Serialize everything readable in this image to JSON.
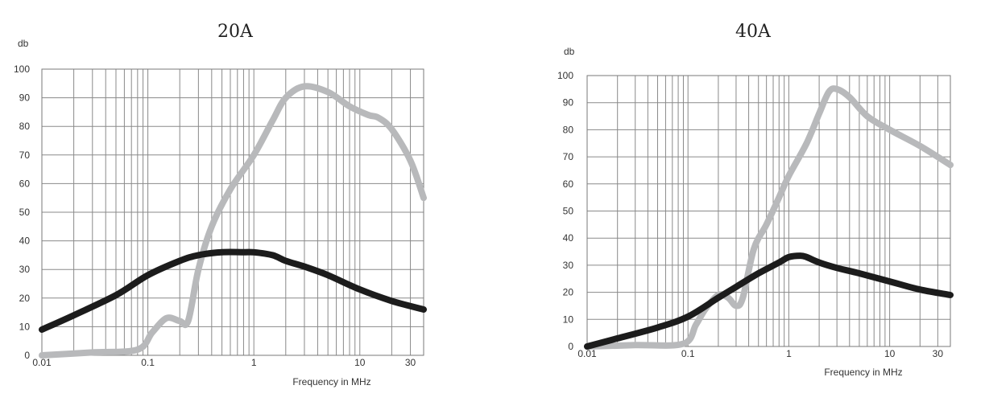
{
  "colors": {
    "series_grey": "#b8b9bb",
    "series_black": "#1c1c1c",
    "grid": "#8a8a8a"
  },
  "chart_data": [
    {
      "type": "line",
      "title": "20A",
      "ylabel": "db",
      "xlabel": "Frequency in MHz",
      "x_scale": "log",
      "xlim": [
        0.01,
        40
      ],
      "ylim": [
        0,
        100
      ],
      "yticks": [
        0,
        10,
        20,
        30,
        40,
        50,
        60,
        70,
        80,
        90,
        100
      ],
      "ytick_labels": [
        "0",
        "10",
        "20",
        "30",
        "40",
        "50",
        "60",
        "70",
        "80",
        "90",
        "100"
      ],
      "xtick_labels": [
        {
          "value": 0.01,
          "label": "0.01"
        },
        {
          "value": 0.1,
          "label": "0.1"
        },
        {
          "value": 1,
          "label": "1"
        },
        {
          "value": 10,
          "label": "10"
        },
        {
          "value": 30,
          "label": "30"
        }
      ],
      "grid": true,
      "series": [
        {
          "color_key": "series_grey",
          "points": [
            [
              0.01,
              0
            ],
            [
              0.03,
              1
            ],
            [
              0.08,
              2
            ],
            [
              0.11,
              8
            ],
            [
              0.15,
              13
            ],
            [
              0.2,
              12
            ],
            [
              0.24,
              12
            ],
            [
              0.3,
              30
            ],
            [
              0.4,
              45
            ],
            [
              0.6,
              58
            ],
            [
              1,
              70
            ],
            [
              1.5,
              82
            ],
            [
              2,
              90
            ],
            [
              3,
              94
            ],
            [
              5,
              92
            ],
            [
              8,
              87
            ],
            [
              12,
              84
            ],
            [
              15,
              83
            ],
            [
              20,
              79
            ],
            [
              30,
              68
            ],
            [
              40,
              55
            ]
          ]
        },
        {
          "color_key": "series_black",
          "points": [
            [
              0.01,
              9
            ],
            [
              0.02,
              14
            ],
            [
              0.05,
              21
            ],
            [
              0.1,
              28
            ],
            [
              0.2,
              33
            ],
            [
              0.3,
              35
            ],
            [
              0.5,
              36
            ],
            [
              0.8,
              36
            ],
            [
              1,
              36
            ],
            [
              1.5,
              35
            ],
            [
              2,
              33
            ],
            [
              3,
              31
            ],
            [
              5,
              28
            ],
            [
              10,
              23
            ],
            [
              20,
              19
            ],
            [
              40,
              16
            ]
          ]
        }
      ]
    },
    {
      "type": "line",
      "title": "40A",
      "ylabel": "db",
      "xlabel": "Frequency in MHz",
      "x_scale": "log",
      "xlim": [
        0.01,
        40
      ],
      "ylim": [
        0,
        100
      ],
      "yticks": [
        0,
        10,
        20,
        30,
        40,
        50,
        60,
        70,
        80,
        90,
        100
      ],
      "ytick_labels": [
        "0",
        "10",
        "20",
        "30",
        "40",
        "50",
        "60",
        "70",
        "80",
        "90",
        "100"
      ],
      "xtick_labels": [
        {
          "value": 0.01,
          "label": "0.01"
        },
        {
          "value": 0.1,
          "label": "0.1"
        },
        {
          "value": 1,
          "label": "1"
        },
        {
          "value": 10,
          "label": "10"
        },
        {
          "value": 30,
          "label": "30"
        }
      ],
      "grid": true,
      "series": [
        {
          "color_key": "series_grey",
          "points": [
            [
              0.01,
              0
            ],
            [
              0.03,
              0.5
            ],
            [
              0.09,
              1
            ],
            [
              0.12,
              8
            ],
            [
              0.15,
              14
            ],
            [
              0.2,
              19
            ],
            [
              0.25,
              18
            ],
            [
              0.3,
              15
            ],
            [
              0.35,
              18
            ],
            [
              0.45,
              36
            ],
            [
              0.6,
              45
            ],
            [
              0.8,
              55
            ],
            [
              1,
              63
            ],
            [
              1.5,
              75
            ],
            [
              2,
              86
            ],
            [
              2.5,
              94
            ],
            [
              3,
              95
            ],
            [
              4,
              92
            ],
            [
              6,
              85
            ],
            [
              10,
              80
            ],
            [
              20,
              74
            ],
            [
              40,
              67
            ]
          ]
        },
        {
          "color_key": "series_black",
          "points": [
            [
              0.01,
              0
            ],
            [
              0.02,
              3
            ],
            [
              0.05,
              7
            ],
            [
              0.1,
              11
            ],
            [
              0.2,
              18
            ],
            [
              0.3,
              22
            ],
            [
              0.5,
              27
            ],
            [
              0.8,
              31
            ],
            [
              1,
              33
            ],
            [
              1.3,
              33.5
            ],
            [
              1.5,
              33
            ],
            [
              2,
              31
            ],
            [
              3,
              29
            ],
            [
              5,
              27
            ],
            [
              10,
              24
            ],
            [
              20,
              21
            ],
            [
              40,
              19
            ]
          ]
        }
      ]
    }
  ]
}
